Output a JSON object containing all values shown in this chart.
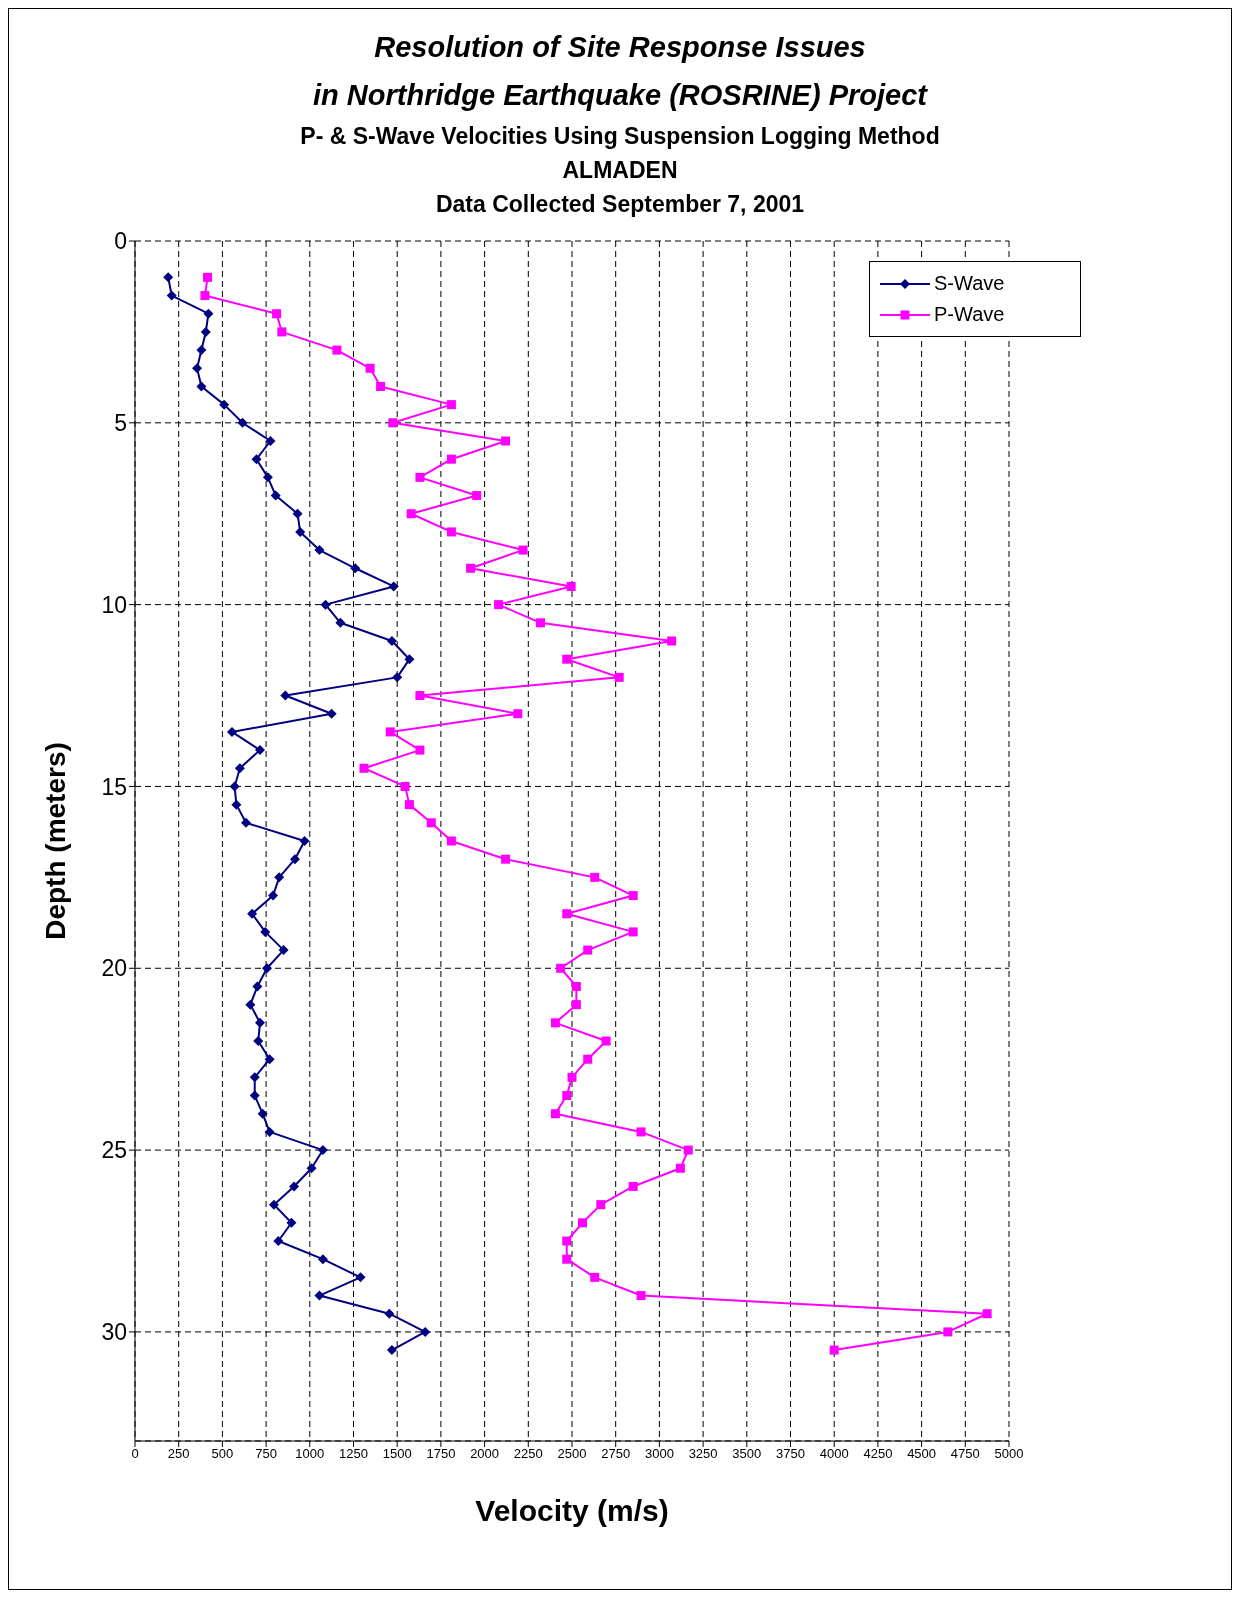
{
  "chart_data": {
    "type": "line",
    "title": "Resolution of Site Response Issues\nin Northridge Earthquake (ROSRINE) Project",
    "subtitle": "P- & S-Wave Velocities Using Suspension Logging Method\nALMADEN\nData Collected September 7, 2001",
    "xlabel": "Velocity (m/s)",
    "ylabel": "Depth (meters)",
    "xlim": [
      0,
      5000
    ],
    "xticks": [
      0,
      250,
      500,
      750,
      1000,
      1250,
      1500,
      1750,
      2000,
      2250,
      2500,
      2750,
      3000,
      3250,
      3500,
      3750,
      4000,
      4250,
      4500,
      4750,
      5000
    ],
    "ylim": [
      33,
      0
    ],
    "yticks": [
      0,
      5,
      10,
      15,
      20,
      25,
      30
    ],
    "grid": true,
    "legend": "top right",
    "line_style": "solid",
    "series": [
      {
        "name": "S-Wave",
        "color": "#000080",
        "marker": "diamond",
        "x": [
          190,
          210,
          420,
          405,
          380,
          355,
          380,
          510,
          615,
          775,
          695,
          760,
          805,
          930,
          945,
          1055,
          1260,
          1480,
          1090,
          1175,
          1470,
          1570,
          1500,
          860,
          1125,
          555,
          715,
          600,
          570,
          580,
          635,
          970,
          915,
          825,
          790,
          670,
          745,
          850,
          755,
          700,
          660,
          715,
          705,
          770,
          685,
          685,
          730,
          770,
          1075,
          1010,
          910,
          795,
          895,
          820,
          1075,
          1290,
          1055,
          1455,
          1660,
          1470
        ],
        "values": [
          1,
          1.5,
          2,
          2.5,
          3,
          3.5,
          4,
          4.5,
          5,
          5.5,
          6,
          6.5,
          7,
          7.5,
          8,
          8.5,
          9,
          9.5,
          10,
          10.5,
          11,
          11.5,
          12,
          12.5,
          13,
          13.5,
          14,
          14.5,
          15,
          15.5,
          16,
          16.5,
          17,
          17.5,
          18,
          18.5,
          19,
          19.5,
          20,
          20.5,
          21,
          21.5,
          22,
          22.5,
          23,
          23.5,
          24,
          24.5,
          25,
          25.5,
          26,
          26.5,
          27,
          27.5,
          28,
          28.5,
          29,
          29.5,
          30,
          30.5
        ]
      },
      {
        "name": "P-Wave",
        "color": "#ff00ff",
        "marker": "square",
        "x": [
          415,
          400,
          810,
          840,
          1155,
          1345,
          1405,
          1810,
          1475,
          2120,
          1810,
          1630,
          1955,
          1580,
          1810,
          2220,
          1920,
          2495,
          2080,
          2320,
          3070,
          2470,
          2770,
          1630,
          2190,
          1460,
          1630,
          1310,
          1545,
          1570,
          1695,
          1810,
          2120,
          2630,
          2850,
          2470,
          2850,
          2590,
          2435,
          2525,
          2525,
          2405,
          2695,
          2590,
          2500,
          2470,
          2405,
          2895,
          3165,
          3120,
          2850,
          2665,
          2560,
          2470,
          2470,
          2630,
          2895,
          4875,
          4650,
          4000
        ],
        "values": [
          1,
          1.5,
          2,
          2.5,
          3,
          3.5,
          4,
          4.5,
          5,
          5.5,
          6,
          6.5,
          7,
          7.5,
          8,
          8.5,
          9,
          9.5,
          10,
          10.5,
          11,
          11.5,
          12,
          12.5,
          13,
          13.5,
          14,
          14.5,
          15,
          15.5,
          16,
          16.5,
          17,
          17.5,
          18,
          18.5,
          19,
          19.5,
          20,
          20.5,
          21,
          21.5,
          22,
          22.5,
          23,
          23.5,
          24,
          24.5,
          25,
          25.5,
          26,
          26.5,
          27,
          27.5,
          28,
          28.5,
          29,
          29.5,
          30,
          30.5
        ]
      }
    ]
  }
}
